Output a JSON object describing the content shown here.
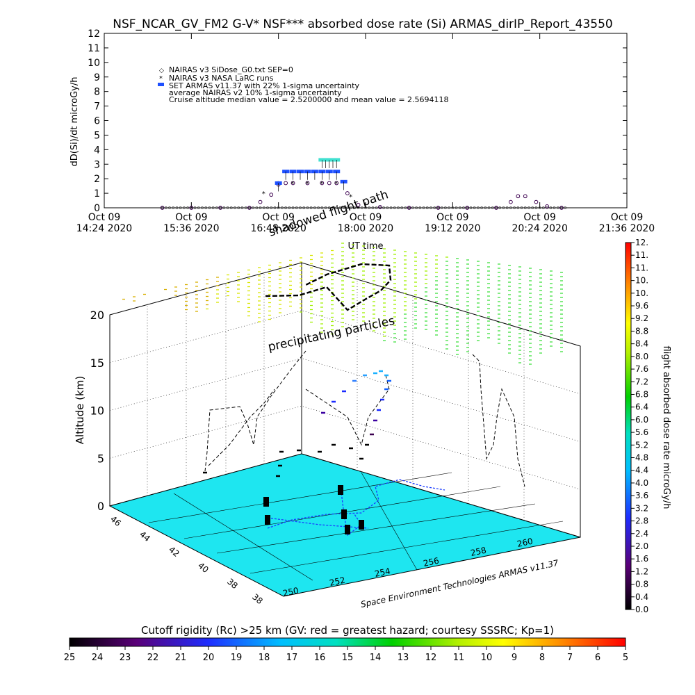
{
  "page": {
    "title": "NSF_NCAR_GV_FM2 G-V* NSF*** absorbed dose rate (Si) ARMAS_dirIP_Report_43550",
    "credit": "Space Environment Technologies ARMAS v11.37"
  },
  "top_chart": {
    "type": "scatter",
    "ylabel": "dD(Si)/dt microGy/h",
    "xlabel": "UT time",
    "ylim": [
      0,
      12
    ],
    "yticks": [
      "0",
      "1",
      "2",
      "3",
      "4",
      "5",
      "6",
      "7",
      "8",
      "9",
      "10",
      "11",
      "12"
    ],
    "xticks": [
      {
        "l1": "Oct 09",
        "l2": "14:24 2020"
      },
      {
        "l1": "Oct 09",
        "l2": "15:36 2020"
      },
      {
        "l1": "Oct 09",
        "l2": "16:48 2020"
      },
      {
        "l1": "Oct 09",
        "l2": "18:00 2020"
      },
      {
        "l1": "Oct 09",
        "l2": "19:12 2020"
      },
      {
        "l1": "Oct 09",
        "l2": "20:24 2020"
      },
      {
        "l1": "Oct 09",
        "l2": "21:36 2020"
      }
    ],
    "legend": [
      "NAIRAS v3 SiDose_G0.txt SEP=0",
      "NAIRAS v3 NASA LaRC runs",
      "SET ARMAS v11.37 with 22% 1-sigma uncertainty",
      "average NAIRAS v2 10% 1-sigma uncertainty",
      "Cruise altitude median value = 2.5200000 and mean value = 2.5694118"
    ]
  },
  "chart_data": [
    {
      "type": "scatter",
      "name_hint": "top dose-rate time series",
      "x_unit": "UT hours on Oct 09 2020",
      "xlim": [
        14.4,
        21.6
      ],
      "ylim": [
        0,
        12
      ],
      "series": [
        {
          "name": "NAIRAS v3 SiDose_G0.txt SEP=0",
          "x": [
            15.2,
            15.6,
            16.0,
            16.4,
            16.55,
            16.7,
            16.8,
            16.9,
            17.0,
            17.2,
            17.4,
            17.5,
            17.6,
            17.75,
            17.9,
            18.2,
            18.6,
            19.0,
            19.4,
            19.8,
            20.0,
            20.1,
            20.2,
            20.35,
            20.5,
            20.7
          ],
          "y": [
            0,
            0,
            0,
            0,
            0.4,
            0.9,
            1.6,
            1.7,
            1.7,
            1.7,
            1.7,
            1.7,
            1.7,
            1.0,
            0.2,
            0.05,
            0,
            0,
            0,
            0,
            0.4,
            0.8,
            0.8,
            0.4,
            0.1,
            0
          ]
        },
        {
          "name": "NAIRAS v3 NASA LaRC runs",
          "x": [
            16.6,
            16.8,
            17.0,
            17.2,
            17.4,
            17.6,
            17.8
          ],
          "y": [
            1.0,
            1.7,
            1.7,
            1.7,
            1.7,
            1.7,
            0.8
          ]
        },
        {
          "name": "SET ARMAS v11.37 with 22% 1-sigma uncertainty",
          "x": [
            16.8,
            16.9,
            17.0,
            17.1,
            17.2,
            17.3,
            17.4,
            17.5,
            17.6,
            17.7
          ],
          "y": [
            1.7,
            2.5,
            2.5,
            2.5,
            2.5,
            2.5,
            2.5,
            2.5,
            2.5,
            1.8
          ]
        },
        {
          "name": "average NAIRAS v2 10% 1-sigma uncertainty",
          "x": [
            17.4,
            17.45,
            17.5,
            17.55,
            17.6
          ],
          "y": [
            3.3,
            3.3,
            3.3,
            3.3,
            3.3
          ]
        }
      ]
    },
    {
      "type": "scatter",
      "name_hint": "3D flight path colored by dose rate",
      "zlabel": "Altitude (km)",
      "zticks": [
        "0",
        "5",
        "10",
        "15",
        "20"
      ],
      "x_ticks": [
        "250",
        "252",
        "254",
        "256",
        "258",
        "260"
      ],
      "y_ticks": [
        "38",
        "38",
        "40",
        "42",
        "44",
        "46"
      ],
      "annotations": [
        "shadowed flight path",
        "precipitating particles"
      ],
      "colorbar_label": "flight absorbed dose rate microGy/h",
      "colorbar_ticks": [
        "0.0",
        "0.4",
        "0.8",
        "1.2",
        "1.6",
        "2.0",
        "2.4",
        "2.8",
        "3.2",
        "3.6",
        "4.0",
        "4.4",
        "4.8",
        "5.2",
        "5.6",
        "6.0",
        "6.4",
        "6.8",
        "7.2",
        "7.6",
        "8.0",
        "8.4",
        "8.8",
        "9.2",
        "9.6",
        "10.",
        "10.",
        "11.",
        "11.",
        "12."
      ]
    }
  ],
  "bottom_bar": {
    "label": "Cutoff rigidity (Rc) >25 km (GV: red = greatest hazard; courtesy SSSRC; Kp=1)",
    "ticks": [
      "25",
      "24",
      "23",
      "22",
      "21",
      "20",
      "19",
      "18",
      "17",
      "16",
      "15",
      "14",
      "13",
      "12",
      "11",
      "10",
      "9",
      "8",
      "7",
      "6",
      "5"
    ]
  },
  "colors": {
    "map_fill": "#1ee6f0",
    "armas_series": "#1e50ff",
    "nairas_v2": "#40e0d0",
    "nairas_v3": "#3c0050"
  }
}
